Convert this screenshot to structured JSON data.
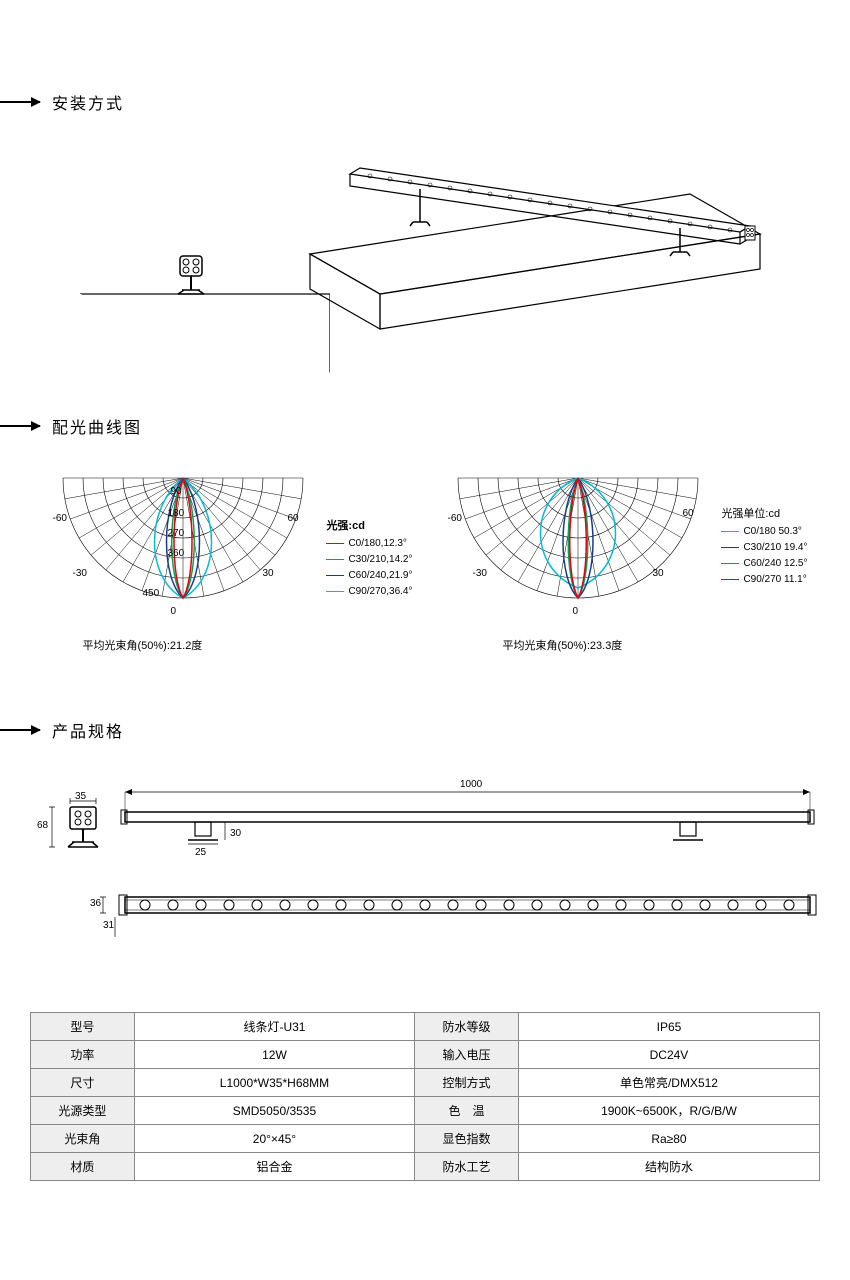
{
  "sections": {
    "install": "安装方式",
    "polar": "配光曲线图",
    "spec": "产品规格"
  },
  "polar1": {
    "angles_left": [
      "-60",
      "-30",
      "0"
    ],
    "angles_right": [
      "30",
      "60"
    ],
    "inner_labels": [
      "90",
      "180",
      "270",
      "360",
      "450"
    ],
    "legend_title": "光强:cd",
    "legend": [
      {
        "color": "#e60012",
        "label": "C0/180,12.3°"
      },
      {
        "color": "#00a651",
        "label": "C30/210,14.2°"
      },
      {
        "color": "#1b3c8c",
        "label": "C60/240,21.9°"
      },
      {
        "color": "#00bcd4",
        "label": "C90/270,36.4°"
      }
    ],
    "caption": "平均光束角(50%):21.2度"
  },
  "polar2": {
    "angles_left": [
      "-60",
      "-30"
    ],
    "angles_right": [
      "30",
      "60"
    ],
    "zero": "0",
    "legend_title": "光强单位:cd",
    "legend": [
      {
        "color": "#00bcd4",
        "label": "C0/180 50.3°"
      },
      {
        "color": "#1b3c8c",
        "label": "C30/210 19.4°"
      },
      {
        "color": "#00a651",
        "label": "C60/240 12.5°"
      },
      {
        "color": "#e60012",
        "label": "C90/270 11.1°"
      }
    ],
    "caption": "平均光束角(50%):23.3度"
  },
  "dimensions": {
    "length": "1000",
    "height": "68",
    "width": "35",
    "bracket_w": "25",
    "bracket_h": "30",
    "top_h": "36",
    "top_offset": "31"
  },
  "table": [
    {
      "h1": "型号",
      "v1": "线条灯-U31",
      "h2": "防水等级",
      "v2": "IP65"
    },
    {
      "h1": "功率",
      "v1": "12W",
      "h2": "输入电压",
      "v2": "DC24V"
    },
    {
      "h1": "尺寸",
      "v1": "L1000*W35*H68MM",
      "h2": "控制方式",
      "v2": "单色常亮/DMX512"
    },
    {
      "h1": "光源类型",
      "v1": "SMD5050/3535",
      "h2": "色　温",
      "v2": "1900K~6500K，R/G/B/W"
    },
    {
      "h1": "光束角",
      "v1": "20°×45°",
      "h2": "显色指数",
      "v2": "Ra≥80"
    },
    {
      "h1": "材质",
      "v1": "铝合金",
      "h2": "防水工艺",
      "v2": "结构防水"
    }
  ],
  "colors": {
    "grid": "#000000",
    "table_border": "#888888",
    "table_header_bg": "#eeeeee"
  }
}
